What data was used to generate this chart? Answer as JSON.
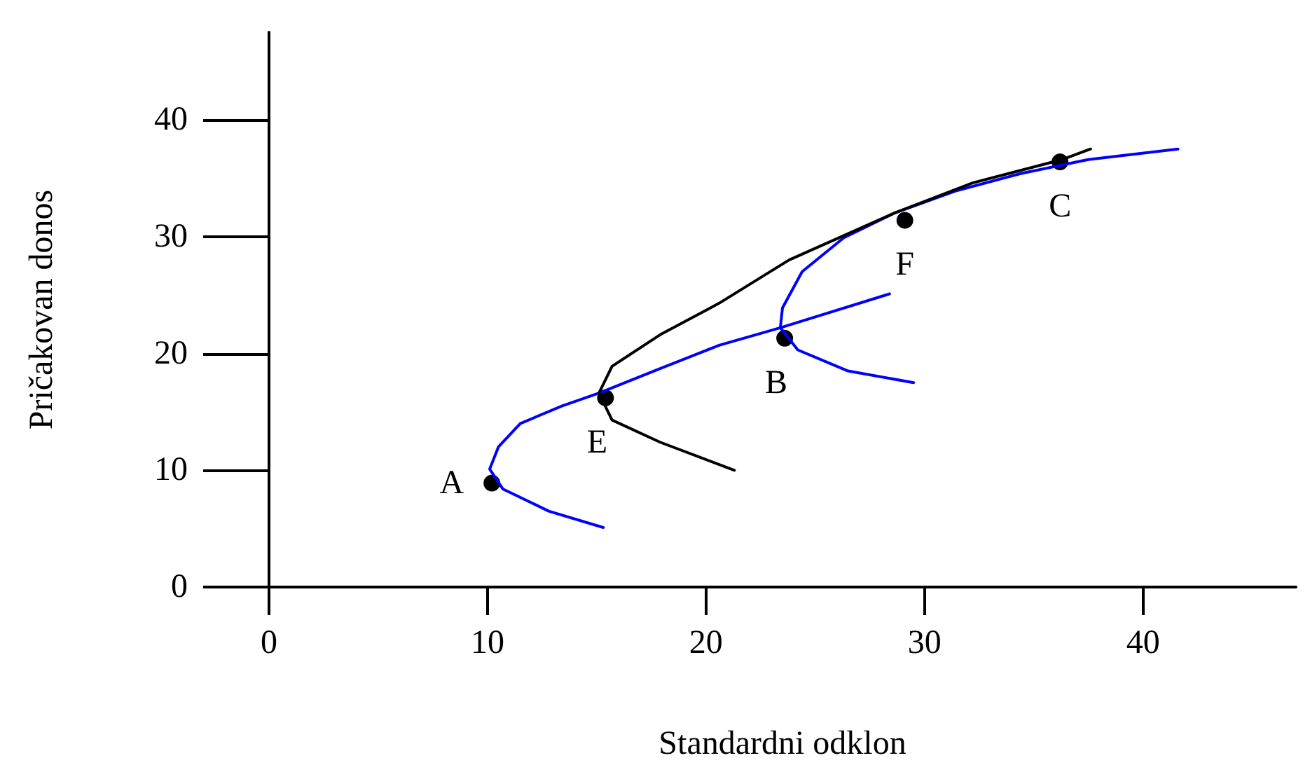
{
  "chart_data": {
    "type": "line",
    "xlabel": "Standardni odklon",
    "ylabel": "Pričakovan donos",
    "xlim": [
      0,
      47
    ],
    "ylim": [
      0,
      47.5
    ],
    "xticks": [
      0,
      10,
      20,
      30,
      40
    ],
    "yticks": [
      0,
      10,
      20,
      30,
      40
    ],
    "grid": false,
    "line_style": "solid",
    "marker": "none",
    "series": [
      {
        "color": "#0000ff",
        "x": [
          15.3,
          12.8,
          10.7,
          10.1,
          10.5,
          11.5,
          13.4,
          15.1,
          17.9,
          20.6,
          23.4,
          28.4
        ],
        "values": [
          5.1,
          6.5,
          8.4,
          10.1,
          12.0,
          14.0,
          15.5,
          16.6,
          18.7,
          20.7,
          22.2,
          25.1
        ]
      },
      {
        "color": "#0000ff",
        "x": [
          29.5,
          26.5,
          24.2,
          23.4,
          23.5,
          24.4,
          26.3,
          28.6,
          31.4,
          34.4,
          37.5,
          41.6
        ],
        "values": [
          17.5,
          18.5,
          20.3,
          22.2,
          23.9,
          27.0,
          29.9,
          32.0,
          33.9,
          35.4,
          36.6,
          37.5
        ]
      },
      {
        "color": "#000000",
        "x": [
          21.3,
          17.9,
          15.7,
          15.1,
          15.7,
          17.9,
          20.6,
          23.8,
          28.6,
          32.2,
          36.3,
          37.6
        ],
        "values": [
          10.0,
          12.4,
          14.3,
          16.6,
          18.9,
          21.6,
          24.3,
          28.0,
          32.0,
          34.6,
          36.6,
          37.5
        ]
      },
      {
        "type": "scatter",
        "color": "#000000",
        "marker": "circle",
        "x": [
          10.2,
          15.4,
          23.6,
          29.1,
          36.2
        ],
        "values": [
          8.9,
          16.2,
          21.3,
          31.4,
          36.4
        ],
        "value_labels": [
          "A",
          "E",
          "B",
          "F",
          "C"
        ]
      }
    ]
  }
}
